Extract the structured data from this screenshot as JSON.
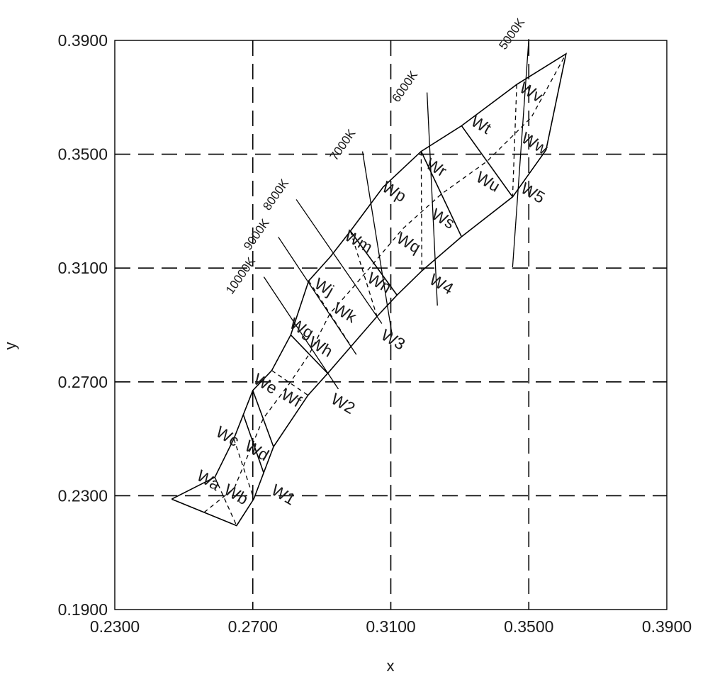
{
  "chart_data": {
    "type": "diagram-on-xy-axes",
    "xlabel": "x",
    "ylabel": "y",
    "xlim": [
      0.23,
      0.39
    ],
    "ylim": [
      0.19,
      0.39
    ],
    "x_ticks": [
      "0.2300",
      "0.2700",
      "0.3100",
      "0.3500",
      "0.3900"
    ],
    "y_ticks": [
      "0.1900",
      "0.2300",
      "0.2700",
      "0.3100",
      "0.3500",
      "0.3900"
    ],
    "grid": true,
    "outline": [
      [
        0.2465,
        0.2288
      ],
      [
        0.2653,
        0.2195
      ],
      [
        0.2703,
        0.2289
      ],
      [
        0.276,
        0.2472
      ],
      [
        0.286,
        0.2653
      ],
      [
        0.2917,
        0.273
      ],
      [
        0.2985,
        0.2825
      ],
      [
        0.306,
        0.293
      ],
      [
        0.3118,
        0.3005
      ],
      [
        0.319,
        0.309
      ],
      [
        0.3305,
        0.321
      ],
      [
        0.3453,
        0.335
      ],
      [
        0.355,
        0.3515
      ],
      [
        0.3608,
        0.3853
      ],
      [
        0.3465,
        0.3745
      ],
      [
        0.3305,
        0.36
      ],
      [
        0.3188,
        0.351
      ],
      [
        0.3078,
        0.3385
      ],
      [
        0.2983,
        0.323
      ],
      [
        0.2925,
        0.314
      ],
      [
        0.2862,
        0.3055
      ],
      [
        0.281,
        0.2865
      ],
      [
        0.2755,
        0.274
      ],
      [
        0.27,
        0.267
      ],
      [
        0.2645,
        0.25
      ],
      [
        0.259,
        0.2365
      ],
      [
        0.2465,
        0.2288
      ]
    ],
    "bins": [
      {
        "label": "W1",
        "x": 0.2787,
        "y": 0.23
      },
      {
        "label": "W2",
        "x": 0.296,
        "y": 0.262
      },
      {
        "label": "W3",
        "x": 0.3105,
        "y": 0.2845
      },
      {
        "label": "W4",
        "x": 0.3245,
        "y": 0.304
      },
      {
        "label": "W5",
        "x": 0.351,
        "y": 0.336
      },
      {
        "label": "Wa",
        "x": 0.257,
        "y": 0.2351
      },
      {
        "label": "Wb",
        "x": 0.265,
        "y": 0.2301
      },
      {
        "label": "Wc",
        "x": 0.2625,
        "y": 0.2505
      },
      {
        "label": "Wd",
        "x": 0.271,
        "y": 0.2455
      },
      {
        "label": "We",
        "x": 0.2735,
        "y": 0.269
      },
      {
        "label": "Wf",
        "x": 0.281,
        "y": 0.264
      },
      {
        "label": "Wg",
        "x": 0.284,
        "y": 0.2885
      },
      {
        "label": "Wh",
        "x": 0.2895,
        "y": 0.282
      },
      {
        "label": "Wj",
        "x": 0.2905,
        "y": 0.303
      },
      {
        "label": "Wk",
        "x": 0.2965,
        "y": 0.294
      },
      {
        "label": "Wm",
        "x": 0.3005,
        "y": 0.319
      },
      {
        "label": "Wn",
        "x": 0.3065,
        "y": 0.3045
      },
      {
        "label": "Wp",
        "x": 0.3108,
        "y": 0.3365
      },
      {
        "label": "Wq",
        "x": 0.315,
        "y": 0.3185
      },
      {
        "label": "Wr",
        "x": 0.323,
        "y": 0.345
      },
      {
        "label": "Ws",
        "x": 0.325,
        "y": 0.327
      },
      {
        "label": "Wt",
        "x": 0.336,
        "y": 0.36
      },
      {
        "label": "Wu",
        "x": 0.338,
        "y": 0.34
      },
      {
        "label": "Wv",
        "x": 0.3505,
        "y": 0.3715
      },
      {
        "label": "Ww",
        "x": 0.3515,
        "y": 0.3535
      }
    ],
    "cct_lines": [
      {
        "label": "10000K",
        "x": [
          0.2732,
          0.2948
        ],
        "y": [
          0.3069,
          0.2675
        ],
        "label_at": [
          0.2674,
          0.3065
        ]
      },
      {
        "label": "9000K",
        "x": [
          0.2774,
          0.3
        ],
        "y": [
          0.3209,
          0.2796
        ],
        "label_at": [
          0.272,
          0.321
        ]
      },
      {
        "label": "8000K",
        "x": [
          0.2826,
          0.3074
        ],
        "y": [
          0.3341,
          0.2905
        ],
        "label_at": [
          0.2776,
          0.335
        ]
      },
      {
        "label": "7000K",
        "x": [
          0.3018,
          0.3104
        ],
        "y": [
          0.351,
          0.2863
        ],
        "label_at": [
          0.297,
          0.3525
        ]
      },
      {
        "label": "6000K",
        "x": [
          0.3205,
          0.3235
        ],
        "y": [
          0.3717,
          0.2968
        ],
        "label_at": [
          0.315,
          0.373
        ]
      },
      {
        "label": "5000K",
        "x": [
          0.35,
          0.3453
        ],
        "y": [
          0.3905,
          0.3103
        ],
        "label_at": [
          0.346,
          0.3915
        ]
      }
    ]
  }
}
